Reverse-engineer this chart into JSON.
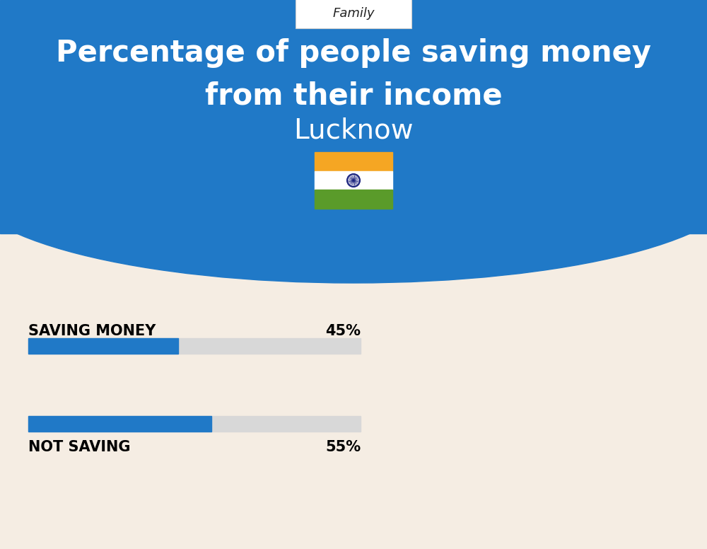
{
  "title_line1": "Percentage of people saving money",
  "title_line2": "from their income",
  "subtitle": "Lucknow",
  "category_label": "Family",
  "bg_color_top": "#2079C7",
  "bg_color_bottom": "#F5EDE3",
  "bar_color_filled": "#2079C7",
  "bar_color_empty": "#D8D8D8",
  "bars": [
    {
      "label": "SAVING MONEY",
      "value": 45
    },
    {
      "label": "NOT SAVING",
      "value": 55
    }
  ],
  "title_fontsize": 30,
  "subtitle_fontsize": 28,
  "family_fontsize": 13,
  "bar_label_fontsize": 15,
  "flag_saffron": "#F5A623",
  "flag_white": "#FFFFFF",
  "flag_green": "#5A9B2A",
  "flag_navy": "#1A237E"
}
